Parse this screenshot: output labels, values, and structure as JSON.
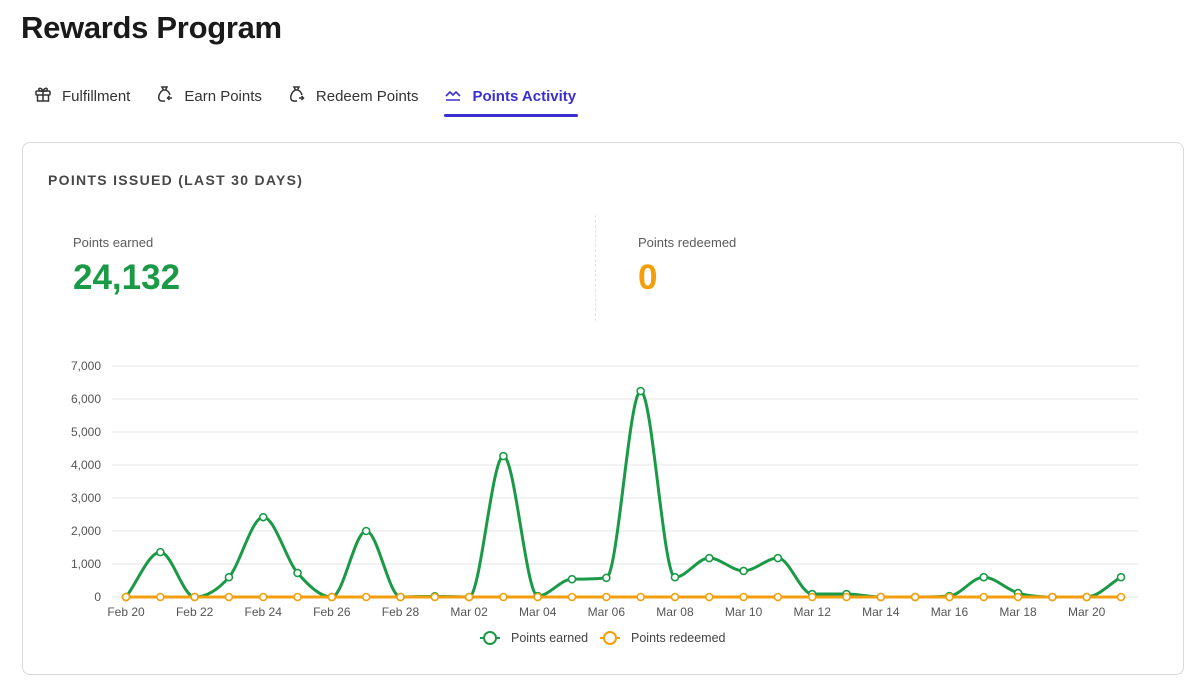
{
  "page": {
    "title": "Rewards Program"
  },
  "tabs": [
    {
      "label": "Fulfillment",
      "icon": "gift-icon",
      "active": false
    },
    {
      "label": "Earn Points",
      "icon": "money-bag-in-icon",
      "active": false
    },
    {
      "label": "Redeem Points",
      "icon": "money-bag-out-icon",
      "active": false
    },
    {
      "label": "Points Activity",
      "icon": "line-chart-icon",
      "active": true
    }
  ],
  "card": {
    "title": "POINTS ISSUED (LAST 30 DAYS)",
    "earned": {
      "label": "Points earned",
      "value": "24,132"
    },
    "redeemed": {
      "label": "Points redeemed",
      "value": "0"
    }
  },
  "colors": {
    "accent": "#3b2fd1",
    "earned": "#1a9a46",
    "redeemed": "#f59e0b"
  },
  "chart_data": {
    "type": "line",
    "x": [
      "Feb 20",
      "Feb 21",
      "Feb 22",
      "Feb 23",
      "Feb 24",
      "Feb 25",
      "Feb 26",
      "Feb 27",
      "Feb 28",
      "Mar 01",
      "Mar 02",
      "Mar 03",
      "Mar 04",
      "Mar 05",
      "Mar 06",
      "Mar 07",
      "Mar 08",
      "Mar 09",
      "Mar 10",
      "Mar 11",
      "Mar 12",
      "Mar 13",
      "Mar 14",
      "Mar 15",
      "Mar 16",
      "Mar 17",
      "Mar 18",
      "Mar 19",
      "Mar 20",
      "Mar 21"
    ],
    "x_tick_labels": [
      "Feb 20",
      "Feb 22",
      "Feb 24",
      "Feb 26",
      "Feb 28",
      "Mar 02",
      "Mar 04",
      "Mar 06",
      "Mar 08",
      "Mar 10",
      "Mar 12",
      "Mar 14",
      "Mar 16",
      "Mar 18",
      "Mar 20"
    ],
    "y_tick_labels": [
      "0",
      "1,000",
      "2,000",
      "3,000",
      "4,000",
      "5,000",
      "6,000",
      "7,000"
    ],
    "ylim": [
      0,
      7000
    ],
    "grid": true,
    "legend_position": "bottom",
    "series": [
      {
        "name": "Points earned",
        "values": [
          0,
          1360,
          0,
          600,
          2420,
          730,
          0,
          2000,
          0,
          20,
          0,
          4270,
          30,
          540,
          580,
          6240,
          600,
          1180,
          790,
          1180,
          90,
          90,
          0,
          0,
          30,
          600,
          120,
          0,
          0,
          600
        ]
      },
      {
        "name": "Points redeemed",
        "values": [
          0,
          0,
          0,
          0,
          0,
          0,
          0,
          0,
          0,
          0,
          0,
          0,
          0,
          0,
          0,
          0,
          0,
          0,
          0,
          0,
          0,
          0,
          0,
          0,
          0,
          0,
          0,
          0,
          0,
          0
        ]
      }
    ]
  }
}
